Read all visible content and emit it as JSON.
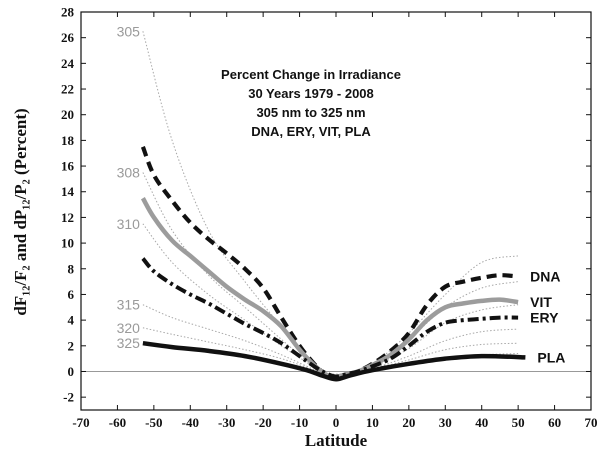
{
  "chart_data": {
    "type": "line",
    "xlabel": "Latitude",
    "ylabel": "dF₁₂/F₂ and dP₁₂/P₂ (Percent)",
    "xlim": [
      -70,
      70
    ],
    "ylim": [
      -3,
      28
    ],
    "xticks": [
      -70,
      -60,
      -50,
      -40,
      -30,
      -20,
      -10,
      0,
      10,
      20,
      30,
      40,
      50,
      60,
      70
    ],
    "yticks": [
      -2,
      0,
      2,
      4,
      6,
      8,
      10,
      12,
      14,
      16,
      18,
      20,
      22,
      24,
      26,
      28
    ],
    "annotation": [
      "Percent Change in Irradiance",
      "30 Years  1979 - 2008",
      "305 nm  to 325 nm",
      "DNA, ERY, VIT, PLA"
    ],
    "zero_line": true,
    "series": [
      {
        "name": "305",
        "style": "thin-dotted-gray",
        "x": [
          -53,
          -45,
          -35,
          -25,
          -15,
          -8,
          -4,
          0,
          4,
          10,
          20,
          30,
          40,
          50
        ],
        "y": [
          26.5,
          18,
          11,
          7,
          3.5,
          1.2,
          -0.2,
          -0.5,
          -0.3,
          0.5,
          3,
          6,
          8.5,
          9
        ]
      },
      {
        "name": "308",
        "style": "thin-dotted-gray",
        "x": [
          -53,
          -45,
          -35,
          -25,
          -15,
          -8,
          -4,
          0,
          4,
          10,
          20,
          30,
          40,
          50
        ],
        "y": [
          15.5,
          11,
          7.5,
          5,
          2.5,
          0.8,
          -0.2,
          -0.5,
          -0.3,
          0.4,
          2.5,
          5,
          6.5,
          7
        ]
      },
      {
        "name": "310",
        "style": "thin-dotted-gray",
        "x": [
          -53,
          -45,
          -35,
          -25,
          -15,
          -8,
          -4,
          0,
          4,
          10,
          20,
          30,
          40,
          50
        ],
        "y": [
          11.5,
          8.5,
          6,
          4,
          2,
          0.7,
          -0.2,
          -0.4,
          -0.2,
          0.3,
          1.8,
          3.8,
          4.8,
          5.2
        ]
      },
      {
        "name": "315",
        "style": "thin-dotted-gray",
        "x": [
          -53,
          -45,
          -35,
          -25,
          -15,
          -8,
          -4,
          0,
          4,
          10,
          20,
          30,
          40,
          50
        ],
        "y": [
          5.2,
          4.2,
          3.3,
          2.4,
          1.3,
          0.4,
          -0.1,
          -0.3,
          -0.2,
          0.2,
          1.2,
          2.4,
          3.1,
          3.3
        ]
      },
      {
        "name": "320",
        "style": "thin-dotted-gray",
        "x": [
          -53,
          -45,
          -35,
          -25,
          -15,
          -8,
          -4,
          0,
          4,
          10,
          20,
          30,
          40,
          50
        ],
        "y": [
          3.4,
          2.9,
          2.3,
          1.7,
          1,
          0.3,
          -0.1,
          -0.3,
          -0.1,
          0.2,
          0.9,
          1.7,
          2.1,
          2.2
        ]
      },
      {
        "name": "325",
        "style": "thin-dotted-gray",
        "x": [
          -53,
          -45,
          -35,
          -25,
          -15,
          -8,
          -4,
          0,
          4,
          10,
          20,
          30,
          40,
          50
        ],
        "y": [
          2.2,
          1.9,
          1.6,
          1.2,
          0.7,
          0.2,
          -0.1,
          -0.2,
          -0.1,
          0.1,
          0.6,
          1.1,
          1.3,
          1.4
        ]
      },
      {
        "name": "DNA",
        "style": "thick-dashed-black",
        "x": [
          -53,
          -50,
          -45,
          -40,
          -35,
          -30,
          -25,
          -20,
          -15,
          -10,
          -6,
          -3,
          0,
          3,
          6,
          10,
          15,
          20,
          25,
          30,
          35,
          40,
          45,
          50
        ],
        "y": [
          17.5,
          15.3,
          13.3,
          11.6,
          10.3,
          9.2,
          8,
          6.5,
          4.2,
          2,
          0.6,
          -0.2,
          -0.5,
          -0.3,
          0,
          0.6,
          1.6,
          3,
          5.2,
          6.6,
          7,
          7.3,
          7.5,
          7.4
        ]
      },
      {
        "name": "VIT",
        "style": "thick-solid-gray",
        "x": [
          -53,
          -50,
          -45,
          -40,
          -35,
          -30,
          -25,
          -20,
          -15,
          -10,
          -6,
          -3,
          0,
          3,
          6,
          10,
          15,
          20,
          25,
          30,
          35,
          40,
          45,
          50
        ],
        "y": [
          13.5,
          12,
          10.2,
          9,
          7.8,
          6.6,
          5.6,
          4.7,
          3.5,
          1.7,
          0.5,
          -0.2,
          -0.4,
          -0.2,
          0,
          0.5,
          1.3,
          2.5,
          4,
          5,
          5.3,
          5.5,
          5.6,
          5.4
        ]
      },
      {
        "name": "ERY",
        "style": "thick-dashdot-black",
        "x": [
          -53,
          -50,
          -45,
          -40,
          -35,
          -30,
          -25,
          -20,
          -15,
          -10,
          -6,
          -3,
          0,
          3,
          6,
          10,
          15,
          20,
          25,
          30,
          35,
          40,
          45,
          50
        ],
        "y": [
          8.8,
          7.8,
          6.8,
          6,
          5.3,
          4.5,
          3.7,
          3,
          2.2,
          1.2,
          0.4,
          -0.1,
          -0.4,
          -0.2,
          0,
          0.4,
          1,
          2,
          3.1,
          3.8,
          4,
          4.1,
          4.2,
          4.2
        ]
      },
      {
        "name": "PLA",
        "style": "thick-solid-black",
        "x": [
          -53,
          -45,
          -35,
          -25,
          -15,
          -8,
          -4,
          0,
          4,
          10,
          20,
          30,
          40,
          52
        ],
        "y": [
          2.2,
          1.9,
          1.6,
          1.2,
          0.6,
          0.1,
          -0.3,
          -0.6,
          -0.3,
          0.1,
          0.6,
          1,
          1.2,
          1.1
        ]
      }
    ]
  }
}
